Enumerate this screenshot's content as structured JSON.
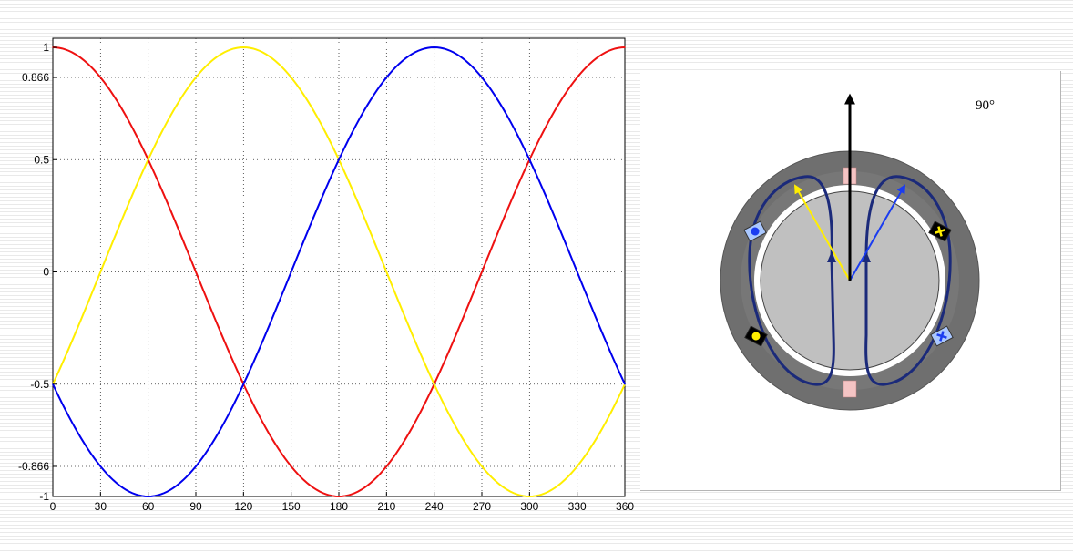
{
  "chart_data": {
    "type": "line",
    "title": "",
    "xlabel": "",
    "ylabel": "",
    "xlim": [
      0,
      360
    ],
    "ylim": [
      -1,
      1
    ],
    "x_ticks": [
      0,
      30,
      60,
      90,
      120,
      150,
      180,
      210,
      240,
      270,
      300,
      330,
      360
    ],
    "x_tick_labels": [
      "0",
      "30",
      "60",
      "90",
      "120",
      "150",
      "180",
      "210",
      "240",
      "270",
      "300",
      "330",
      "360"
    ],
    "y_ticks": [
      -1,
      -0.866,
      -0.5,
      0,
      0.5,
      0.866,
      1
    ],
    "y_tick_labels": [
      "-1",
      "-0.866",
      "-0.5",
      "0",
      "0.5",
      "0.866",
      "1"
    ],
    "grid": true,
    "grid_style": "dotted",
    "x": [
      0,
      30,
      60,
      90,
      120,
      150,
      180,
      210,
      240,
      270,
      300,
      330,
      360
    ],
    "series": [
      {
        "color": "#ee1111",
        "values": [
          1,
          0.866,
          0.5,
          0,
          -0.5,
          -0.866,
          -1,
          -0.866,
          -0.5,
          0,
          0.5,
          0.866,
          1
        ]
      },
      {
        "color": "#ffee00",
        "values": [
          -0.5,
          0,
          0.5,
          0.866,
          1,
          0.866,
          0.5,
          0,
          -0.5,
          -0.866,
          -1,
          -0.866,
          -0.5
        ]
      },
      {
        "color": "#0000ee",
        "values": [
          -0.5,
          -0.866,
          -1,
          -0.866,
          -0.5,
          0,
          0.5,
          0.866,
          1,
          0.866,
          0.5,
          0,
          -0.5
        ]
      }
    ]
  },
  "diagram": {
    "angle_label": "90°",
    "colors": {
      "stator": "#6f6f6f",
      "rotor": "#c0c0c0",
      "air_gap": "#ffffff",
      "coil": "#1b2a7a",
      "resultant_arrow": "#000000",
      "phase_a_arrow": "#ffee00",
      "phase_b_arrow": "#1a3cf0",
      "pole_marker": "#f4c4c4"
    },
    "icons": [
      "dot-in-icon",
      "cross-out-icon"
    ]
  }
}
